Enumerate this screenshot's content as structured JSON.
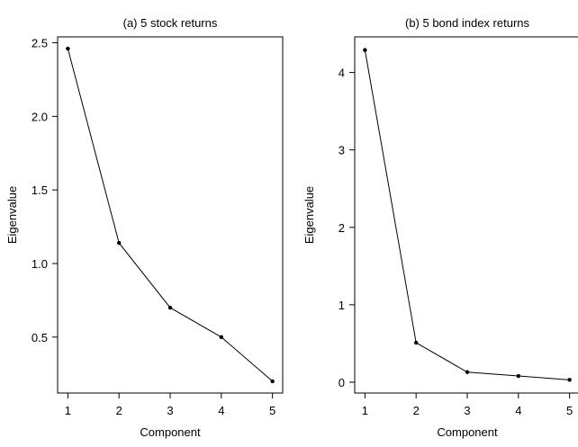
{
  "chart_data": [
    {
      "type": "line",
      "title": "(a) 5 stock returns",
      "xlabel": "Component",
      "ylabel": "Eigenvalue",
      "x": [
        1,
        2,
        3,
        4,
        5
      ],
      "values": [
        2.46,
        1.14,
        0.7,
        0.5,
        0.2
      ],
      "xlim": [
        0.8,
        5.2
      ],
      "ylim": [
        0.12,
        2.54
      ],
      "xticks": [
        1,
        2,
        3,
        4,
        5
      ],
      "xtick_labels": [
        "1",
        "2",
        "3",
        "4",
        "5"
      ],
      "yticks": [
        0.5,
        1.0,
        1.5,
        2.0,
        2.5
      ],
      "ytick_labels": [
        "0.5",
        "1.0",
        "1.5",
        "2.0",
        "2.5"
      ],
      "grid": false,
      "color": "#000000"
    },
    {
      "type": "line",
      "title": "(b) 5 bond index returns",
      "xlabel": "Component",
      "ylabel": "Eigenvalue",
      "x": [
        1,
        2,
        3,
        4,
        5
      ],
      "values": [
        4.29,
        0.51,
        0.13,
        0.08,
        0.03
      ],
      "xlim": [
        0.8,
        5.2
      ],
      "ylim": [
        -0.14,
        4.46
      ],
      "xticks": [
        1,
        2,
        3,
        4,
        5
      ],
      "xtick_labels": [
        "1",
        "2",
        "3",
        "4",
        "5"
      ],
      "yticks": [
        0,
        1,
        2,
        3,
        4
      ],
      "ytick_labels": [
        "0",
        "1",
        "2",
        "3",
        "4"
      ],
      "grid": false,
      "color": "#000000"
    }
  ]
}
